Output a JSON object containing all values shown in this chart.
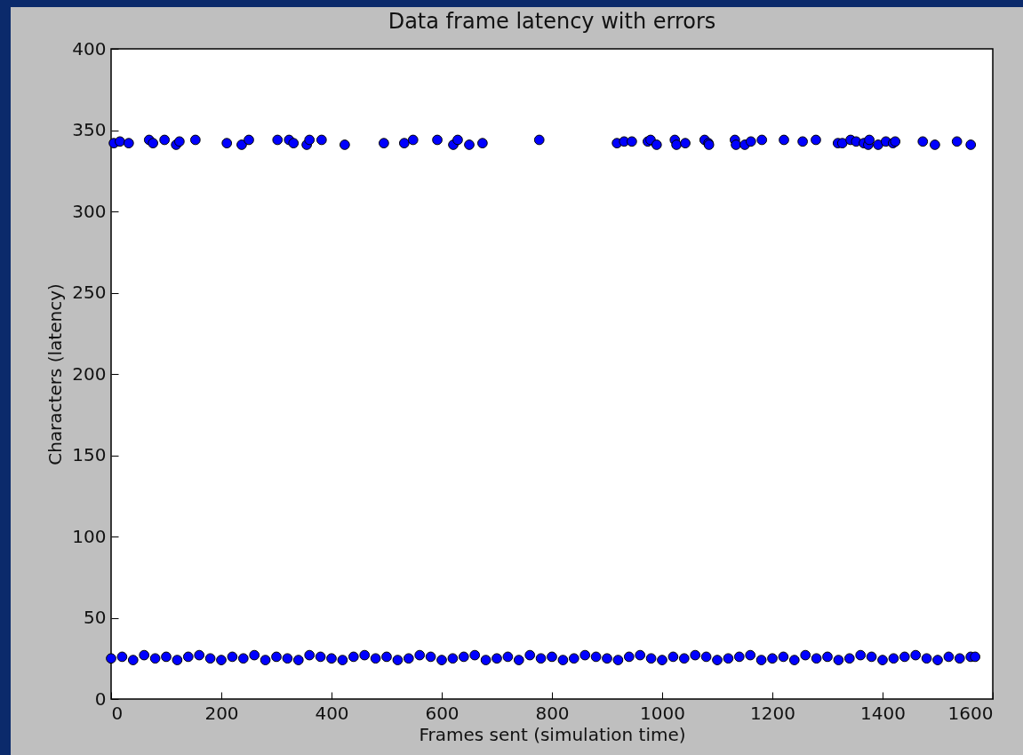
{
  "chart_data": {
    "type": "scatter",
    "title": "Data frame latency with errors",
    "xlabel": "Frames sent (simulation time)",
    "ylabel": "Characters (latency)",
    "xlim": [
      0,
      1600
    ],
    "xticks": [
      0,
      200,
      400,
      600,
      800,
      1000,
      1200,
      1400,
      1600
    ],
    "ylim": [
      0,
      400
    ],
    "yticks": [
      0,
      50,
      100,
      150,
      200,
      250,
      300,
      350,
      400
    ],
    "grid": false,
    "marker": "circle",
    "series": [
      {
        "color": "#0000ff",
        "x": [
          5,
          16,
          32,
          69,
          76,
          97,
          118,
          124,
          153,
          210,
          237,
          250,
          302,
          323,
          331,
          355,
          360,
          382,
          424,
          495,
          532,
          548,
          592,
          621,
          629,
          650,
          674,
          777,
          918,
          931,
          945,
          974,
          979,
          990,
          1023,
          1026,
          1042,
          1077,
          1084,
          1085,
          1132,
          1134,
          1150,
          1161,
          1181,
          1221,
          1255,
          1279,
          1319,
          1327,
          1342,
          1352,
          1366,
          1374,
          1376,
          1392,
          1406,
          1419,
          1423,
          1473,
          1495,
          1535,
          1560
        ],
        "values": [
          342,
          343,
          342,
          344,
          342,
          344,
          341,
          343,
          344,
          342,
          341,
          344,
          344,
          344,
          342,
          341,
          344,
          344,
          341,
          342,
          342,
          344,
          344,
          341,
          344,
          341,
          342,
          344,
          342,
          343,
          343,
          343,
          344,
          341,
          344,
          341,
          342,
          344,
          342,
          341,
          344,
          341,
          341,
          343,
          344,
          344,
          343,
          344,
          342,
          342,
          344,
          343,
          342,
          341,
          344,
          341,
          343,
          342,
          343,
          343,
          341,
          343,
          341
        ]
      },
      {
        "color": "#0000ff",
        "x": [
          0,
          20,
          40,
          60,
          80,
          100,
          120,
          140,
          160,
          180,
          200,
          220,
          240,
          260,
          280,
          300,
          320,
          340,
          360,
          380,
          400,
          420,
          440,
          460,
          480,
          500,
          520,
          540,
          560,
          580,
          600,
          620,
          640,
          660,
          680,
          700,
          720,
          740,
          760,
          780,
          800,
          820,
          840,
          860,
          880,
          900,
          920,
          940,
          960,
          980,
          1000,
          1020,
          1040,
          1060,
          1080,
          1100,
          1120,
          1140,
          1160,
          1180,
          1200,
          1220,
          1240,
          1260,
          1280,
          1300,
          1320,
          1340,
          1360,
          1380,
          1400,
          1420,
          1440,
          1460,
          1480,
          1500,
          1520,
          1540,
          1560,
          1568
        ],
        "values": [
          25,
          26,
          24,
          27,
          25,
          26,
          24,
          26,
          27,
          25,
          24,
          26,
          25,
          27,
          24,
          26,
          25,
          24,
          27,
          26,
          25,
          24,
          26,
          27,
          25,
          26,
          24,
          25,
          27,
          26,
          24,
          25,
          26,
          27,
          24,
          25,
          26,
          24,
          27,
          25,
          26,
          24,
          25,
          27,
          26,
          25,
          24,
          26,
          27,
          25,
          24,
          26,
          25,
          27,
          26,
          24,
          25,
          26,
          27,
          24,
          25,
          26,
          24,
          27,
          25,
          26,
          24,
          25,
          27,
          26,
          24,
          25,
          26,
          27,
          25,
          24,
          26,
          25,
          26,
          26
        ]
      }
    ]
  }
}
